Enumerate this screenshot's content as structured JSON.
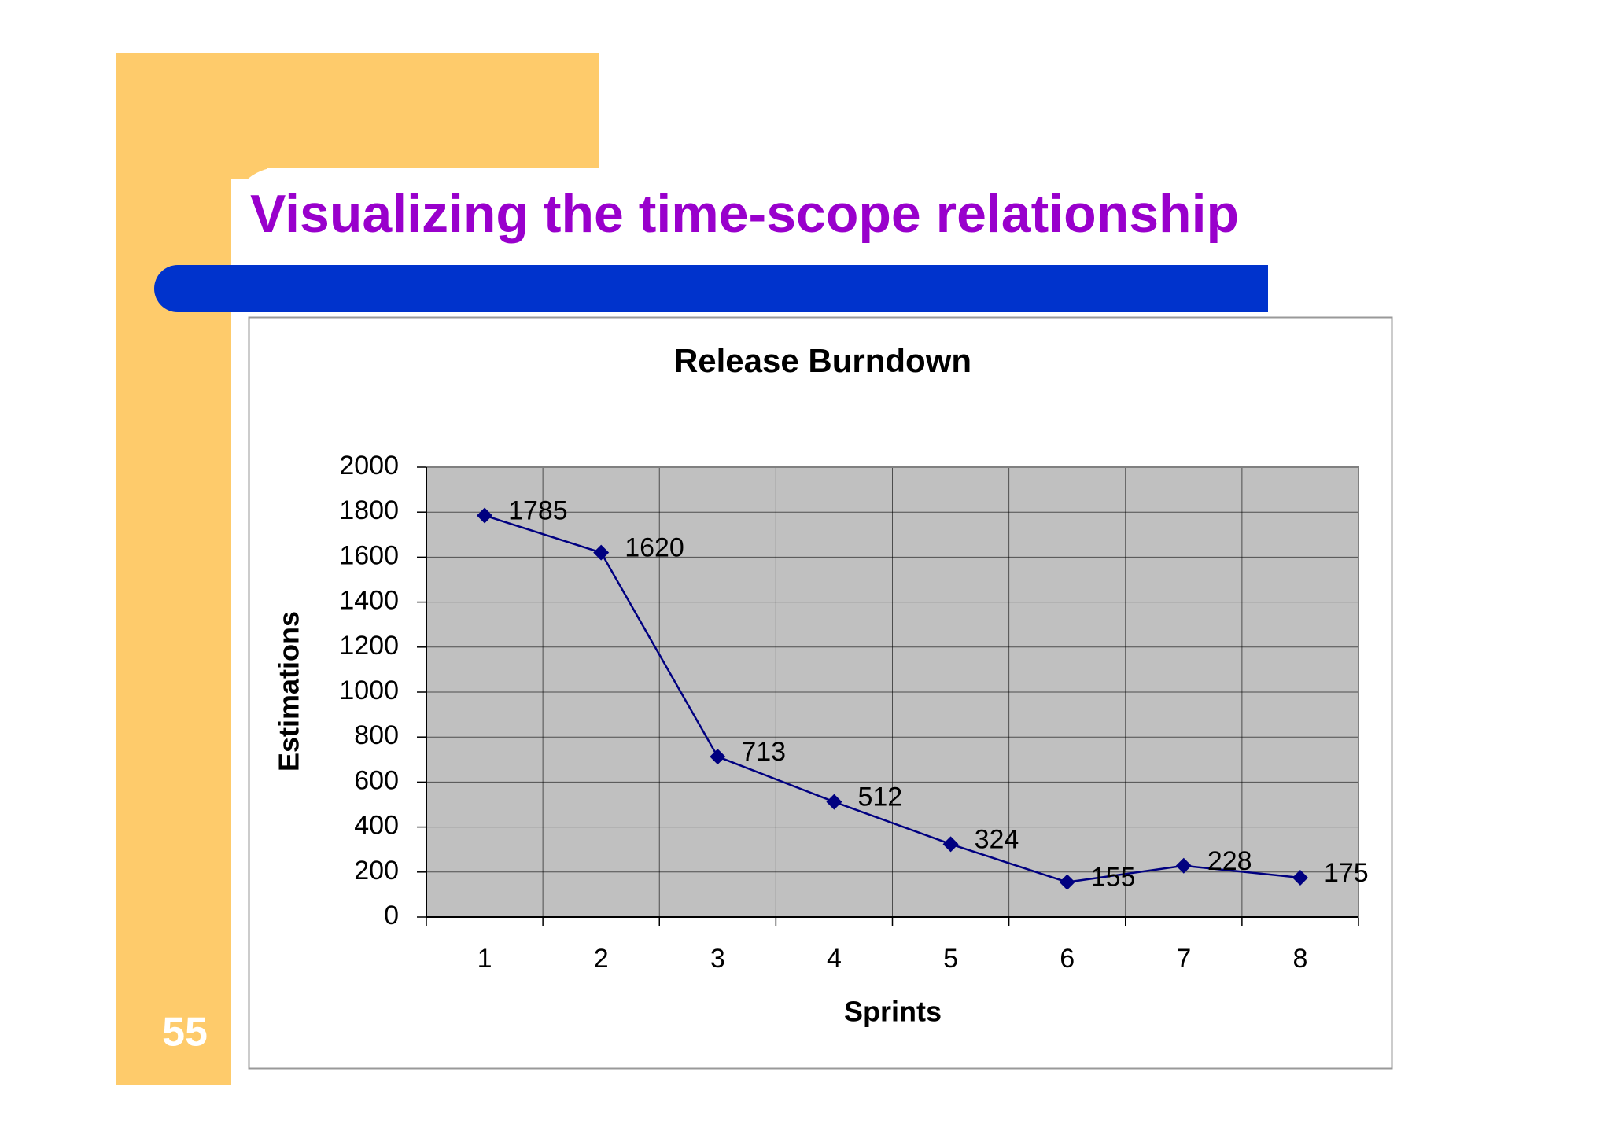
{
  "title": "Visualizing the time-scope relationship",
  "page_number": "55",
  "chart_data": {
    "type": "line",
    "title": "Release Burndown",
    "x_label": "Sprints",
    "y_label": "Estimations",
    "categories": [
      "1",
      "2",
      "3",
      "4",
      "5",
      "6",
      "7",
      "8"
    ],
    "series": [
      {
        "name": "Estimations",
        "color": "#000080",
        "values": [
          1785,
          1620,
          713,
          512,
          324,
          155,
          228,
          175
        ]
      }
    ],
    "ylim": [
      0,
      2000
    ],
    "yticks": [
      0,
      200,
      400,
      600,
      800,
      1000,
      1200,
      1400,
      1600,
      1800,
      2000
    ],
    "grid": true,
    "plot_background": "#c0c0c0"
  }
}
